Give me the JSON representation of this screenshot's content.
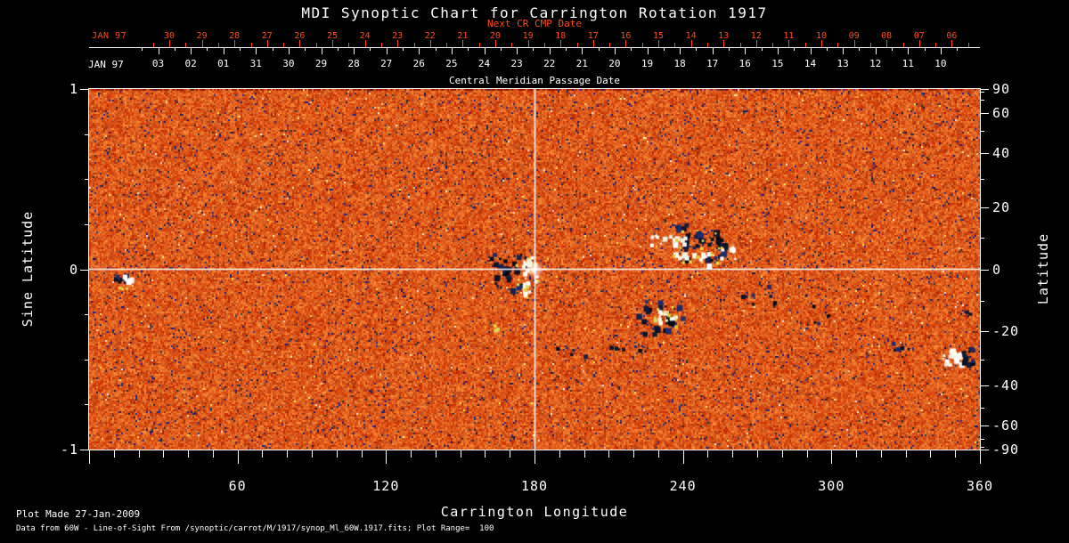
{
  "title": "MDI Synoptic Chart for Carrington Rotation 1917",
  "colors": {
    "accent_red": "#ff4a19",
    "text": "#ffffff",
    "background": "#000000",
    "map_base_orange": "#e05a18",
    "map_negative_navy": "#101c40",
    "map_positive_white": "#ffffff"
  },
  "top_axis": {
    "next_cr_label": "Next CR CMP Date",
    "next_cr_month_label": "JAN 97",
    "next_cr_dates": [
      "30",
      "29",
      "28",
      "27",
      "26",
      "25",
      "24",
      "23",
      "22",
      "21",
      "20",
      "19",
      "18",
      "17",
      "16",
      "15",
      "14",
      "13",
      "12",
      "11",
      "10",
      "09",
      "08",
      "07",
      "06"
    ],
    "cmp_month_label": "JAN 97",
    "cmp_dates": [
      "03",
      "02",
      "01",
      "31",
      "30",
      "29",
      "28",
      "27",
      "26",
      "25",
      "24",
      "23",
      "22",
      "21",
      "20",
      "19",
      "18",
      "17",
      "16",
      "15",
      "14",
      "13",
      "12",
      "11",
      "10"
    ],
    "cmp_axis_label": "Central Meridian Passage Date"
  },
  "x_axis": {
    "label": "Carrington Longitude",
    "tick_labels": [
      "60",
      "120",
      "180",
      "240",
      "300",
      "360"
    ]
  },
  "y_axis_left": {
    "label": "Sine Latitude",
    "tick_labels": [
      "1",
      "0",
      "-1"
    ]
  },
  "y_axis_right": {
    "label": "Latitude",
    "tick_labels": [
      "90",
      "60",
      "40",
      "20",
      "0",
      "-20",
      "-40",
      "-60",
      "-90"
    ]
  },
  "footer": {
    "line1": "Plot Made 27-Jan-2009",
    "line2": "Data from 60W - Line-of-Sight From /synoptic/carrot/M/1917/synop_Ml_60W.1917.fits; Plot Range=  100"
  },
  "chart_data": {
    "type": "heatmap",
    "title": "MDI Synoptic Chart for Carrington Rotation 1917",
    "description": "Solar line-of-sight magnetic field synoptic map for Carrington rotation 1917; speckled orange/red quiet-sun background, dark navy = negative polarity, white/yellow = positive polarity",
    "xlabel": "Carrington Longitude",
    "x_range": [
      0,
      360
    ],
    "x_major_ticks": [
      60,
      120,
      180,
      240,
      300,
      360
    ],
    "x_minor_tick_step": 10,
    "ylabel_left": "Sine Latitude",
    "y_left_range": [
      -1,
      1
    ],
    "y_left_major_ticks": [
      1,
      0,
      -1
    ],
    "y_left_minor_tick_step": 0.25,
    "ylabel_right": "Latitude",
    "y_right_major_ticks": [
      90,
      60,
      40,
      20,
      0,
      -20,
      -40,
      -60,
      -90
    ],
    "y_scale": "sine-latitude",
    "plot_range_gauss": 100,
    "grid": false,
    "crosshair": {
      "carrington_longitude": 180,
      "sine_latitude": 0
    },
    "colormap": "red-temperature; negative field rendered navy/black, positive rendered white/yellow",
    "active_regions": [
      {
        "longitude": 13,
        "latitude": -3,
        "note": "small bipolar spot at left edge"
      },
      {
        "longitude": 170,
        "latitude": -5,
        "note": "bipolar group just west of the 180-degree crosshair, bright plage on the meridian line"
      },
      {
        "longitude": 245,
        "latitude": 8,
        "note": "largest mixed-polarity active-region complex"
      },
      {
        "longitude": 231,
        "latitude": -15,
        "note": "bipolar group south of the equator"
      },
      {
        "longitude": 351,
        "latitude": -28,
        "note": "bipolar region touching the right edge"
      }
    ],
    "next_cr_cmp_dates": {
      "month": "JAN 97",
      "days": [
        30,
        29,
        28,
        27,
        26,
        25,
        24,
        23,
        22,
        21,
        20,
        19,
        18,
        17,
        16,
        15,
        14,
        13,
        12,
        11,
        10,
        9,
        8,
        7,
        6
      ]
    },
    "cmp_dates": {
      "month": "JAN 97",
      "days": [
        3,
        2,
        1,
        31,
        30,
        29,
        28,
        27,
        26,
        25,
        24,
        23,
        22,
        21,
        20,
        19,
        18,
        17,
        16,
        15,
        14,
        13,
        12,
        11,
        10
      ]
    }
  }
}
